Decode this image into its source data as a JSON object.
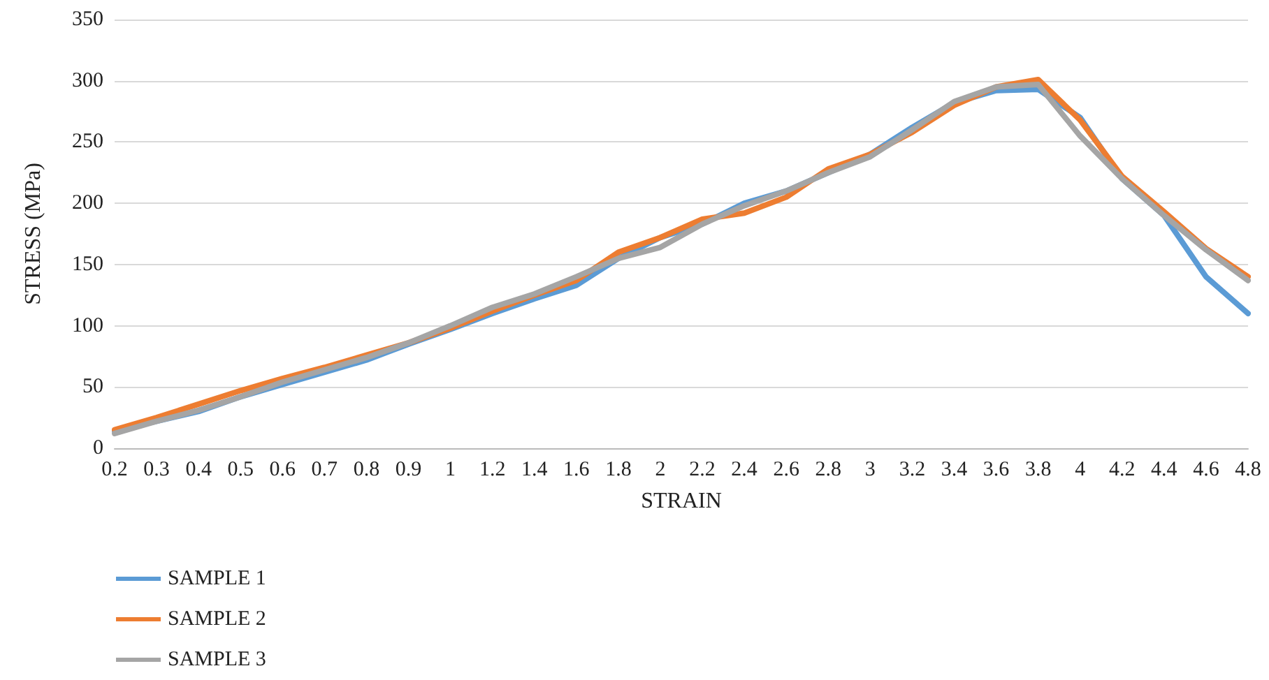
{
  "chart_data": {
    "type": "line",
    "xlabel": "STRAIN",
    "ylabel": "STRESS (MPa)",
    "categories": [
      "0.2",
      "0.3",
      "0.4",
      "0.5",
      "0.6",
      "0.7",
      "0.8",
      "0.9",
      "1",
      "1.2",
      "1.4",
      "1.6",
      "1.8",
      "2",
      "2.2",
      "2.4",
      "2.6",
      "2.8",
      "3",
      "3.2",
      "3.4",
      "3.6",
      "3.8",
      "4",
      "4.2",
      "4.4",
      "4.6",
      "4.8"
    ],
    "series": [
      {
        "name": "SAMPLE 1",
        "color": "#5b9bd5",
        "values": [
          14,
          22,
          30,
          42,
          52,
          62,
          72,
          85,
          97,
          110,
          122,
          133,
          155,
          172,
          183,
          200,
          210,
          225,
          240,
          262,
          282,
          292,
          293,
          270,
          220,
          190,
          140,
          110
        ]
      },
      {
        "name": "SAMPLE 2",
        "color": "#ed7d31",
        "values": [
          15,
          25,
          36,
          47,
          57,
          66,
          76,
          86,
          98,
          112,
          125,
          137,
          160,
          172,
          187,
          192,
          205,
          228,
          240,
          258,
          280,
          295,
          301,
          268,
          222,
          193,
          163,
          140
        ]
      },
      {
        "name": "SAMPLE 3",
        "color": "#a5a5a5",
        "values": [
          12,
          22,
          31,
          42,
          54,
          64,
          74,
          86,
          100,
          115,
          126,
          140,
          155,
          164,
          183,
          198,
          210,
          225,
          238,
          260,
          283,
          295,
          297,
          255,
          220,
          190,
          162,
          137
        ]
      }
    ],
    "ylim": [
      0,
      350
    ],
    "yticks": [
      0,
      50,
      100,
      150,
      200,
      250,
      300,
      350
    ],
    "grid": "y",
    "legend": "bottom left",
    "marker": "none",
    "line_style": "solid"
  }
}
